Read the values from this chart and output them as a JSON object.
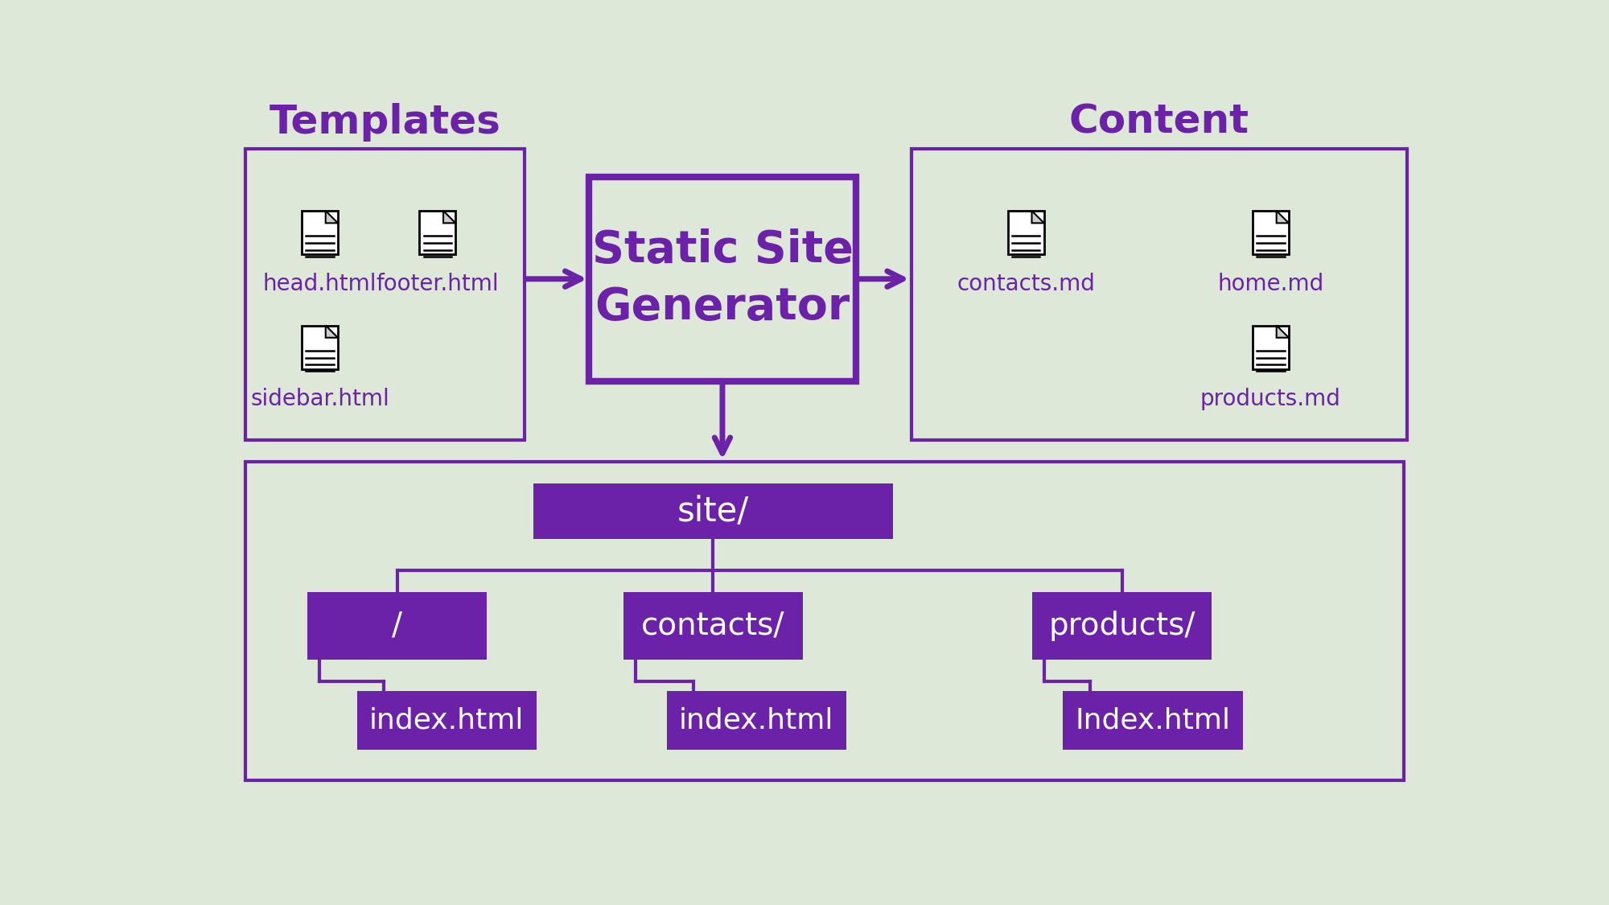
{
  "bg_color": "#dde8d8",
  "purple": "#6b21a8",
  "purple_fill": "#6b21a8",
  "white": "#ffffff",
  "title": "Static Site\nGenerator",
  "templates_label": "Templates",
  "content_label": "Content",
  "site_label": "site/",
  "folders": [
    "/",
    "contacts/",
    "products/"
  ],
  "index_labels": [
    "index.html",
    "index.html",
    "Index.html"
  ],
  "tmpl_files": [
    {
      "label": "head.html",
      "col": 0,
      "row": 0
    },
    {
      "label": "footer.html",
      "col": 1,
      "row": 0
    },
    {
      "label": "sidebar.html",
      "col": 0,
      "row": 1
    }
  ],
  "cont_files": [
    {
      "label": "contacts.md",
      "col": 0,
      "row": 0
    },
    {
      "label": "home.md",
      "col": 1,
      "row": 0
    },
    {
      "label": "products.md",
      "col": 1,
      "row": 1
    }
  ]
}
